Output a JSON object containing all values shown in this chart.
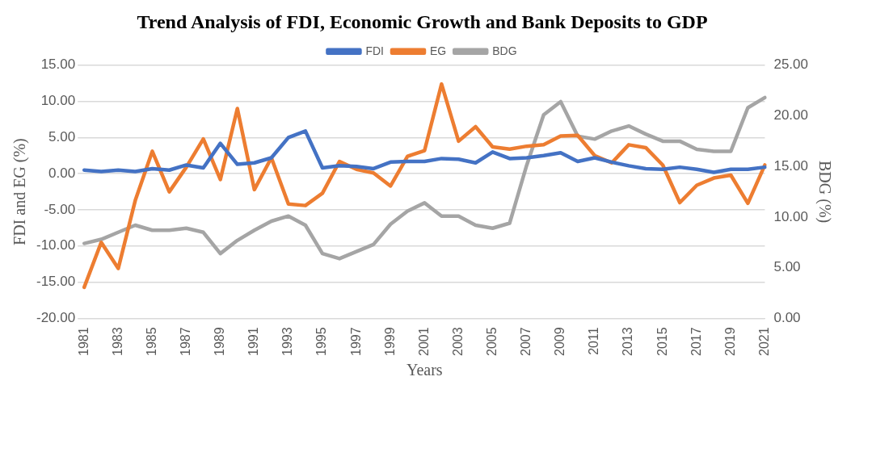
{
  "chart_data": {
    "type": "line",
    "title": "Trend Analysis of FDI, Economic Growth and Bank Deposits to GDP",
    "xlabel": "Years",
    "ylabel": "FDI and EG (%)",
    "y2label": "BDG (%)",
    "categories": [
      "1981",
      null,
      "1983",
      null,
      "1985",
      null,
      "1987",
      null,
      "1989",
      null,
      "1991",
      null,
      "1993",
      null,
      "1995",
      null,
      "1997",
      null,
      "1999",
      null,
      "2001",
      null,
      "2003",
      null,
      "2005",
      null,
      "2007",
      null,
      "2009",
      null,
      "2011",
      null,
      "2013",
      null,
      "2015",
      null,
      "2017",
      null,
      "2019",
      null,
      "2021"
    ],
    "series": [
      {
        "name": "FDI",
        "color": "#4472c4",
        "values": [
          0.5,
          0.3,
          0.5,
          0.3,
          0.7,
          0.5,
          1.2,
          0.8,
          4.2,
          1.3,
          1.5,
          2.2,
          5.0,
          5.9,
          0.8,
          1.1,
          1.0,
          0.7,
          1.6,
          1.7,
          1.7,
          2.1,
          2.0,
          1.5,
          3.0,
          2.1,
          2.2,
          2.5,
          2.9,
          1.7,
          2.2,
          1.6,
          1.1,
          0.7,
          0.6,
          0.9,
          0.6,
          0.2,
          0.6,
          0.6,
          0.9
        ]
      },
      {
        "name": "EG",
        "color": "#ed7d31",
        "values": [
          -15.7,
          -9.5,
          -13.1,
          -3.7,
          3.1,
          -2.5,
          0.9,
          4.8,
          -0.8,
          9.0,
          -2.2,
          2.2,
          -4.2,
          -4.4,
          -2.7,
          1.7,
          0.6,
          0.1,
          -1.7,
          2.4,
          3.2,
          12.4,
          4.5,
          6.5,
          3.7,
          3.4,
          3.8,
          4.0,
          5.2,
          5.3,
          2.5,
          1.5,
          4.0,
          3.6,
          1.2,
          -4.0,
          -1.6,
          -0.6,
          -0.2,
          -4.1,
          1.2
        ]
      },
      {
        "name": "BDG",
        "color": "#a5a5a5",
        "axis": "y2",
        "values": [
          7.4,
          7.8,
          8.5,
          9.2,
          8.7,
          8.7,
          8.9,
          8.5,
          6.4,
          7.7,
          8.7,
          9.6,
          10.1,
          9.2,
          6.4,
          5.9,
          6.6,
          7.3,
          9.3,
          10.6,
          11.4,
          10.1,
          10.1,
          9.2,
          8.9,
          9.4,
          15.1,
          20.1,
          21.4,
          18.0,
          17.7,
          18.5,
          19.0,
          18.2,
          17.5,
          17.5,
          16.7,
          16.5,
          16.5,
          20.8,
          21.8
        ]
      }
    ],
    "ylim": [
      -20,
      15
    ],
    "yticks": [
      {
        "value": -20,
        "label": "-20.00"
      },
      {
        "value": -15,
        "label": "-15.00"
      },
      {
        "value": -10,
        "label": "-10.00"
      },
      {
        "value": -5,
        "label": "-5.00"
      },
      {
        "value": 0,
        "label": "0.00"
      },
      {
        "value": 5,
        "label": "5.00"
      },
      {
        "value": 10,
        "label": "10.00"
      },
      {
        "value": 15,
        "label": "15.00"
      }
    ],
    "y2lim": [
      0,
      25
    ],
    "y2ticks": [
      {
        "value": 0,
        "label": "0.00"
      },
      {
        "value": 5,
        "label": "5.00"
      },
      {
        "value": 10,
        "label": "10.00"
      },
      {
        "value": 15,
        "label": "15.00"
      },
      {
        "value": 20,
        "label": "20.00"
      },
      {
        "value": 25,
        "label": "25.00"
      }
    ],
    "grid": "y",
    "legend": "top",
    "marker": "none",
    "line_style": "solid"
  }
}
